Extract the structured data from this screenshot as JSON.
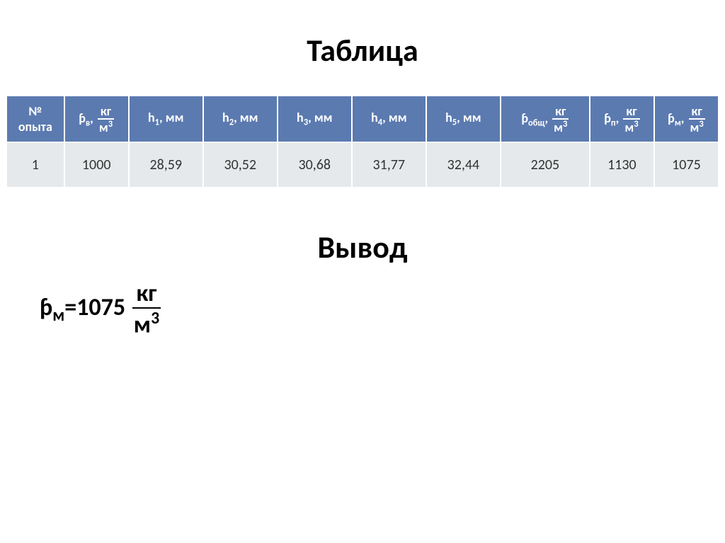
{
  "heading_table": "Таблица",
  "heading_conclusion": "Вывод",
  "table": {
    "header_bg": "#5b7ab0",
    "header_text_color": "#ffffff",
    "row_bg": "#e6e9eb",
    "row_text_color": "#333333",
    "border_color": "#ffffff",
    "columns": [
      {
        "kind": "plain2",
        "line1": "№",
        "line2": "опыта"
      },
      {
        "kind": "rho",
        "rho_sub": "в",
        "frac_num": "кг",
        "frac_den_base": "м",
        "frac_den_sup": "3"
      },
      {
        "kind": "hsub",
        "h_sub": "1",
        "unit": ", мм"
      },
      {
        "kind": "hsub",
        "h_sub": "2",
        "unit": ", мм"
      },
      {
        "kind": "hsub",
        "h_sub": "3",
        "unit": ", мм"
      },
      {
        "kind": "hsub",
        "h_sub": "4",
        "unit": ", мм"
      },
      {
        "kind": "hsub",
        "h_sub": "5",
        "unit": ", мм"
      },
      {
        "kind": "rho",
        "rho_sub": "общ",
        "frac_num": "кг",
        "frac_den_base": "м",
        "frac_den_sup": "3"
      },
      {
        "kind": "rho",
        "rho_sub": "п",
        "frac_num": "кг",
        "frac_den_base": "м",
        "frac_den_sup": "3"
      },
      {
        "kind": "rho",
        "rho_sub": "м",
        "frac_num": "кг",
        "frac_den_base": "м",
        "frac_den_sup": "3"
      }
    ],
    "rows": [
      [
        "1",
        "1000",
        "28,59",
        "30,52",
        "30,68",
        "31,77",
        "32,44",
        "2205",
        "1130",
        "1075"
      ]
    ]
  },
  "formula": {
    "var_sub": "м",
    "eq": "=",
    "value": "1075",
    "frac_num": "кг",
    "frac_den_base": "м",
    "frac_den_sup": "3"
  }
}
